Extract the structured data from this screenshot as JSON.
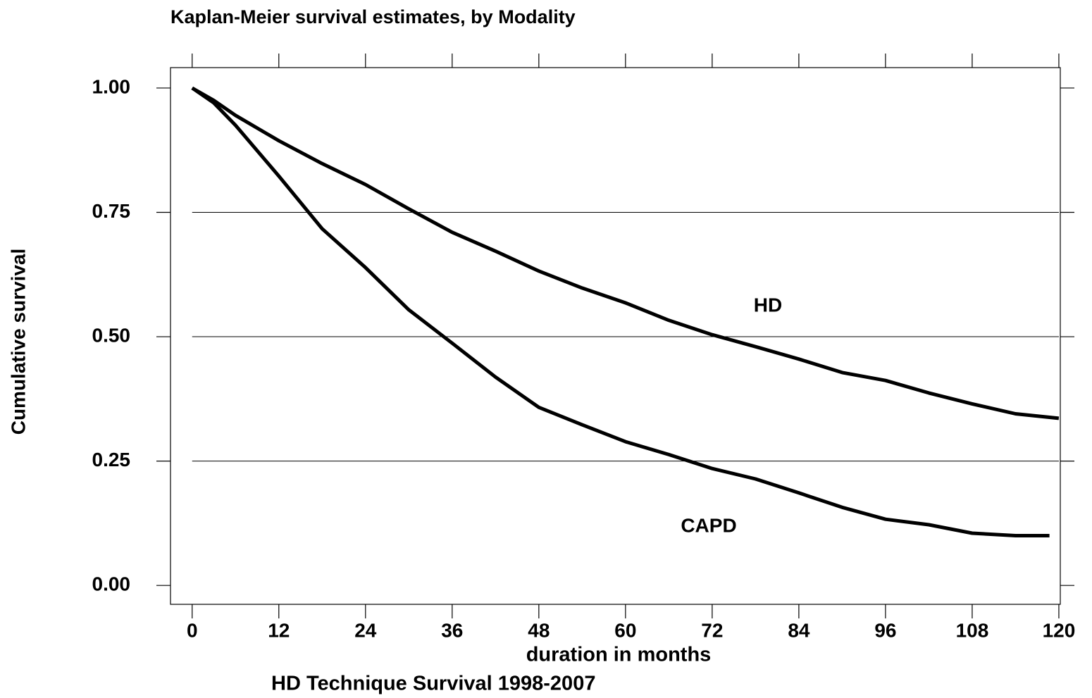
{
  "chart_data": {
    "type": "line",
    "title": "Kaplan-Meier survival estimates, by Modality",
    "xlabel": "duration in months",
    "ylabel": "Cumulative survival",
    "caption": "HD Technique Survival 1998-2007",
    "xlim": [
      -3,
      120.2
    ],
    "ylim": [
      -0.038,
      1.041
    ],
    "xticks": [
      0,
      12,
      24,
      36,
      48,
      60,
      72,
      84,
      96,
      108,
      120
    ],
    "yticks": [
      {
        "value": 0,
        "label": "0.00"
      },
      {
        "value": 0.25,
        "label": "0.25"
      },
      {
        "value": 0.5,
        "label": "0.50"
      },
      {
        "value": 0.75,
        "label": "0.75"
      },
      {
        "value": 1,
        "label": "1.00"
      }
    ],
    "grid": true,
    "series": [
      {
        "name": "HD",
        "color": "#000000",
        "x": [
          0,
          3,
          6,
          12,
          18,
          24,
          30,
          36,
          42,
          48,
          54,
          60,
          66,
          72,
          78,
          84,
          90,
          96,
          102,
          108,
          114,
          120
        ],
        "values": [
          1.0,
          0.975,
          0.945,
          0.894,
          0.848,
          0.806,
          0.757,
          0.71,
          0.672,
          0.632,
          0.598,
          0.568,
          0.533,
          0.504,
          0.48,
          0.455,
          0.428,
          0.412,
          0.387,
          0.365,
          0.345,
          0.336
        ]
      },
      {
        "name": "CAPD",
        "color": "#000000",
        "x": [
          0,
          3,
          6,
          12,
          18,
          24,
          30,
          36,
          42,
          48,
          54,
          60,
          66,
          72,
          78,
          84,
          90,
          96,
          102,
          108,
          114,
          118.7
        ],
        "values": [
          1.0,
          0.97,
          0.925,
          0.823,
          0.717,
          0.639,
          0.554,
          0.487,
          0.419,
          0.358,
          0.323,
          0.289,
          0.263,
          0.235,
          0.214,
          0.186,
          0.157,
          0.133,
          0.122,
          0.105,
          0.1,
          0.1
        ]
      }
    ]
  }
}
